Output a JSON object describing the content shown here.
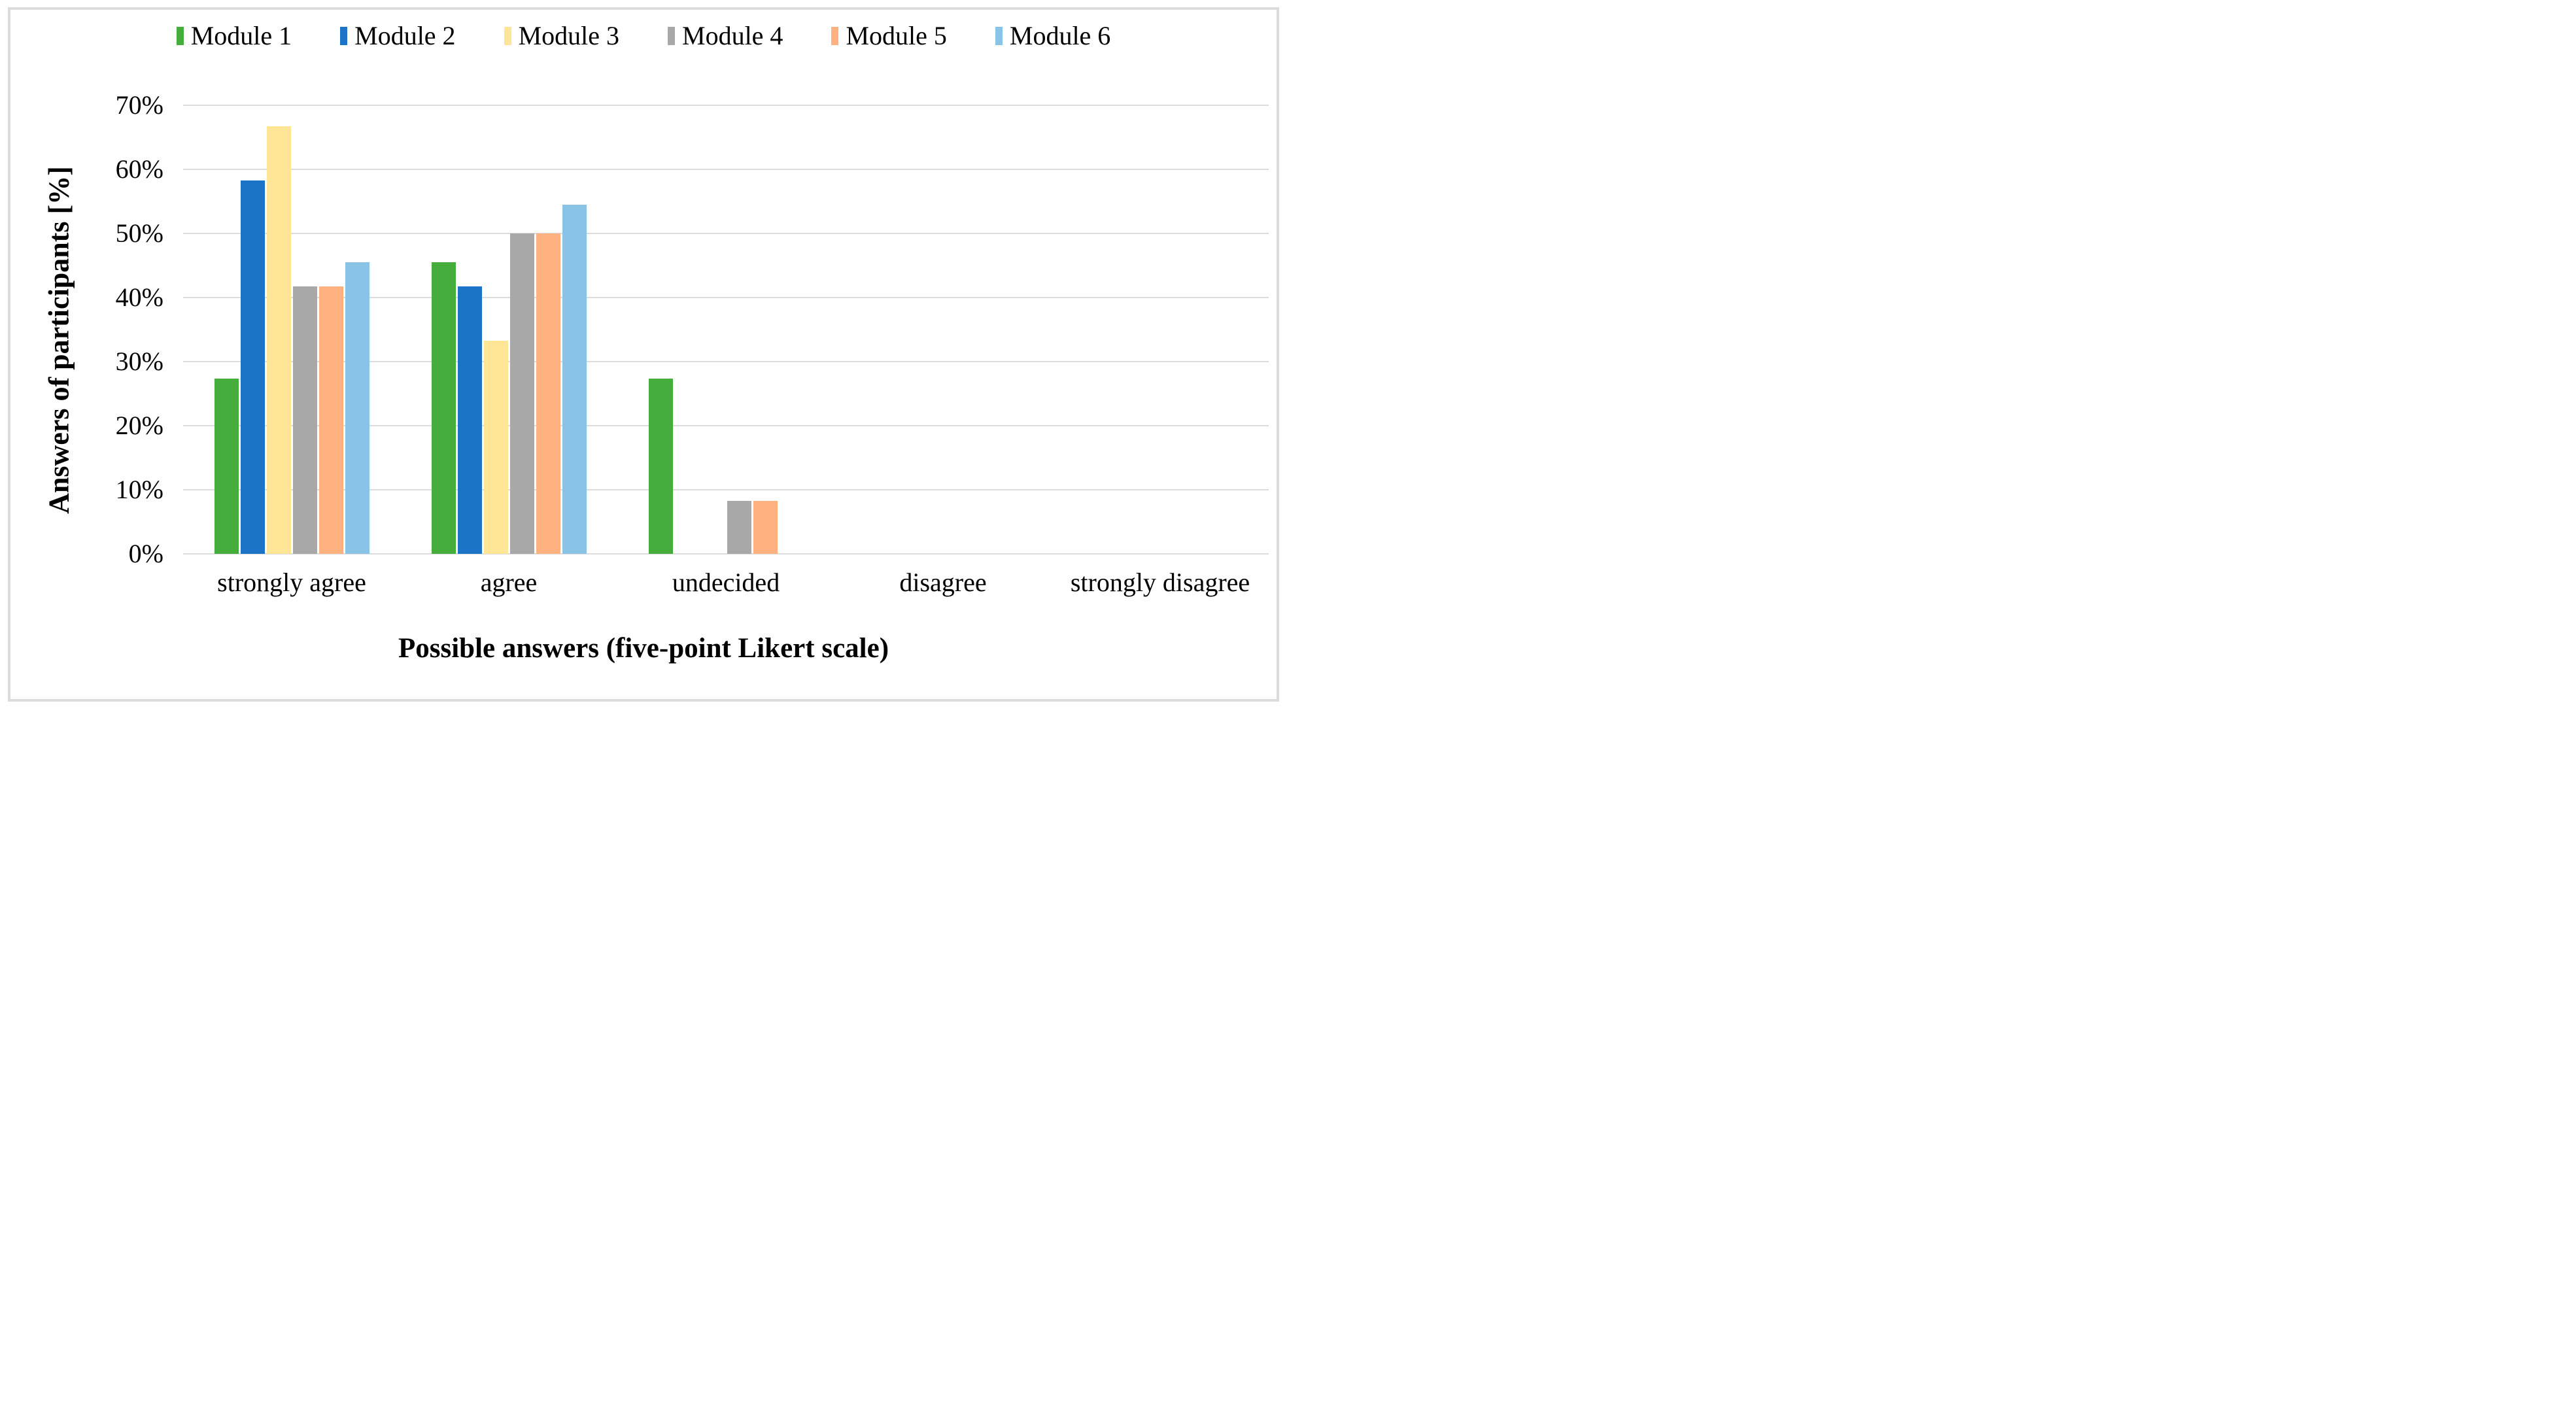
{
  "chart_data": {
    "type": "bar",
    "title": "",
    "categories": [
      "strongly agree",
      "agree",
      "undecided",
      "disagree",
      "strongly disagree"
    ],
    "series": [
      {
        "name": "Module 1",
        "color": "#44AD3C",
        "values": [
          27.3,
          45.5,
          27.3,
          0,
          0
        ]
      },
      {
        "name": "Module 2",
        "color": "#1B74C8",
        "values": [
          58.3,
          41.7,
          0,
          0,
          0
        ]
      },
      {
        "name": "Module 3",
        "color": "#FFE596",
        "values": [
          66.7,
          33.3,
          0,
          0,
          0
        ]
      },
      {
        "name": "Module 4",
        "color": "#A8A8A8",
        "values": [
          41.7,
          50.0,
          8.3,
          0,
          0
        ]
      },
      {
        "name": "Module 5",
        "color": "#FFB180",
        "values": [
          41.7,
          50.0,
          8.3,
          0,
          0
        ]
      },
      {
        "name": "Module 6",
        "color": "#8BC3E7",
        "values": [
          45.5,
          54.5,
          0,
          0,
          0
        ]
      }
    ],
    "xlabel": "Possible answers (five-point Likert scale)",
    "ylabel": "Answers of participants [%]",
    "ylim": [
      0,
      70
    ],
    "ytick_step": 10,
    "yticks": [
      "70%",
      "60%",
      "50%",
      "40%",
      "30%",
      "20%",
      "10%",
      "0%"
    ],
    "grid": true,
    "legend_position": "top",
    "colors": {
      "gridline": "#DCDCDC",
      "figure_border": "#DCDCDC",
      "text": "#000000",
      "background": "#FFFFFF"
    }
  }
}
